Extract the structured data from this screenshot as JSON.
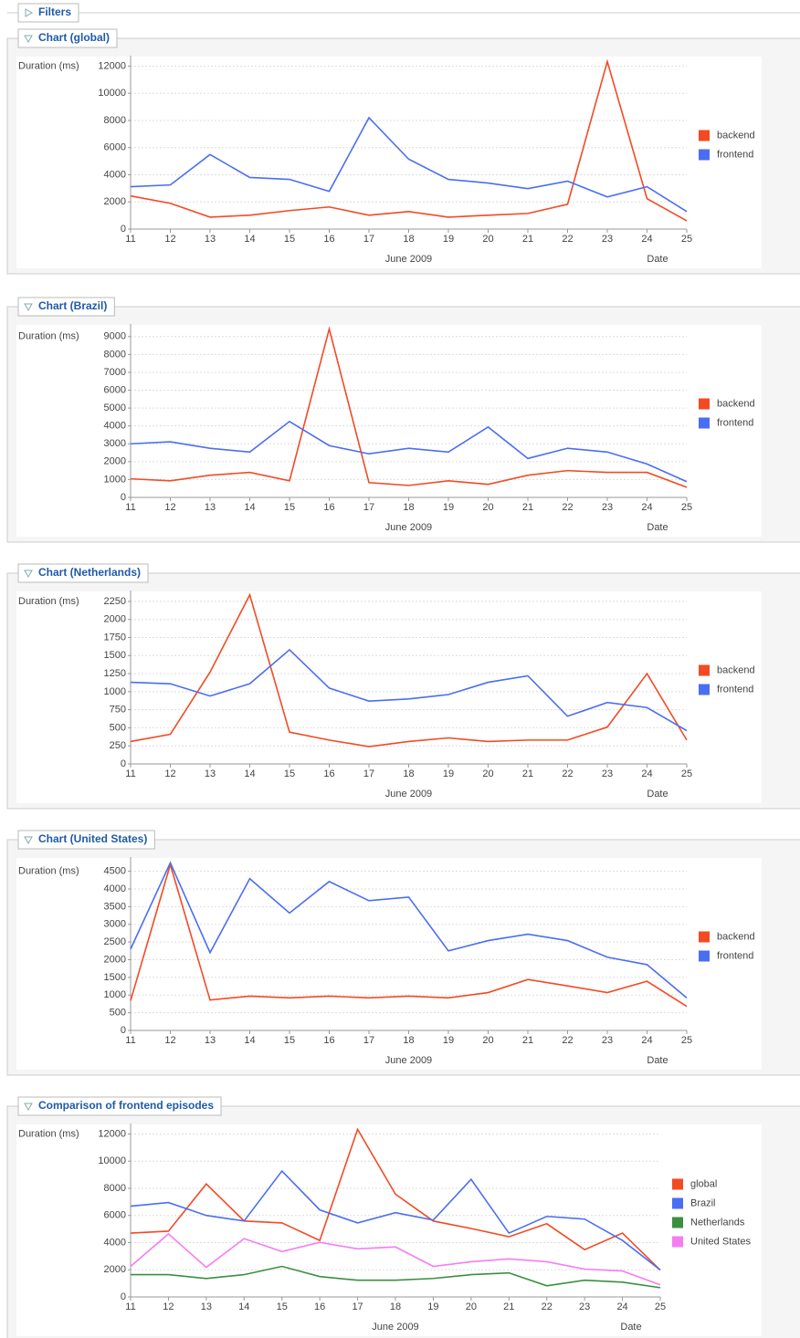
{
  "filters": "Filters",
  "chart_data": [
    {
      "type": "line",
      "title": "Chart (global)",
      "y_label": "Duration (ms)",
      "x_label": "Date",
      "x_sublabel": "June 2009",
      "categories": [
        "11",
        "12",
        "13",
        "14",
        "15",
        "16",
        "17",
        "18",
        "19",
        "20",
        "21",
        "22",
        "23",
        "24",
        "25"
      ],
      "ylim": [
        0,
        12500
      ],
      "yticks": [
        0,
        2000,
        4000,
        6000,
        8000,
        10000,
        12000
      ],
      "grid": true,
      "legend": "right",
      "series": [
        {
          "name": "backend",
          "color": "#f34a23",
          "values": [
            2440,
            1900,
            880,
            1020,
            1360,
            1630,
            1020,
            1290,
            880,
            1020,
            1150,
            1830,
            12340,
            2240,
            610
          ]
        },
        {
          "name": "frontend",
          "color": "#4a6ef2",
          "values": [
            3120,
            3250,
            5490,
            3800,
            3660,
            2780,
            8200,
            5150,
            3660,
            3390,
            2980,
            3530,
            2370,
            3120,
            1290
          ]
        }
      ]
    },
    {
      "type": "line",
      "title": "Chart (Brazil)",
      "y_label": "Duration (ms)",
      "x_label": "Date",
      "x_sublabel": "June 2009",
      "categories": [
        "11",
        "12",
        "13",
        "14",
        "15",
        "16",
        "17",
        "18",
        "19",
        "20",
        "21",
        "22",
        "23",
        "24",
        "25"
      ],
      "ylim": [
        0,
        9500
      ],
      "yticks": [
        0,
        1000,
        2000,
        3000,
        4000,
        5000,
        6000,
        7000,
        8000,
        9000
      ],
      "grid": true,
      "legend": "right",
      "series": [
        {
          "name": "backend",
          "color": "#f34a23",
          "values": [
            1040,
            930,
            1240,
            1400,
            930,
            9430,
            830,
            670,
            930,
            730,
            1240,
            1500,
            1400,
            1400,
            570
          ]
        },
        {
          "name": "frontend",
          "color": "#4a6ef2",
          "values": [
            3000,
            3110,
            2750,
            2540,
            4250,
            2900,
            2440,
            2750,
            2540,
            3940,
            2180,
            2750,
            2540,
            1870,
            880
          ]
        }
      ]
    },
    {
      "type": "line",
      "title": "Chart (Netherlands)",
      "y_label": "Duration (ms)",
      "x_label": "Date",
      "x_sublabel": "June 2009",
      "categories": [
        "11",
        "12",
        "13",
        "14",
        "15",
        "16",
        "17",
        "18",
        "19",
        "20",
        "21",
        "22",
        "23",
        "24",
        "25"
      ],
      "ylim": [
        0,
        2350
      ],
      "yticks": [
        0,
        250,
        500,
        750,
        1000,
        1250,
        1500,
        1750,
        2000,
        2250
      ],
      "grid": true,
      "legend": "right",
      "series": [
        {
          "name": "backend",
          "color": "#f34a23",
          "values": [
            310,
            410,
            1270,
            2340,
            440,
            330,
            240,
            310,
            360,
            310,
            330,
            330,
            510,
            1250,
            330
          ]
        },
        {
          "name": "frontend",
          "color": "#4a6ef2",
          "values": [
            1130,
            1110,
            940,
            1110,
            1580,
            1050,
            870,
            900,
            960,
            1130,
            1220,
            660,
            850,
            780,
            460
          ]
        }
      ]
    },
    {
      "type": "line",
      "title": "Chart (United States)",
      "y_label": "Duration (ms)",
      "x_label": "Date",
      "x_sublabel": "June 2009",
      "categories": [
        "11",
        "12",
        "13",
        "14",
        "15",
        "16",
        "17",
        "18",
        "19",
        "20",
        "21",
        "22",
        "23",
        "24",
        "25"
      ],
      "ylim": [
        0,
        4800
      ],
      "yticks": [
        0,
        500,
        1000,
        1500,
        2000,
        2500,
        3000,
        3500,
        4000,
        4500
      ],
      "grid": true,
      "legend": "right",
      "series": [
        {
          "name": "backend",
          "color": "#f34a23",
          "values": [
            840,
            4690,
            860,
            970,
            920,
            970,
            920,
            970,
            920,
            1070,
            1440,
            1260,
            1070,
            1390,
            680
          ]
        },
        {
          "name": "frontend",
          "color": "#4a6ef2",
          "values": [
            2300,
            4740,
            2200,
            4290,
            3320,
            4210,
            3670,
            3770,
            2250,
            2540,
            2720,
            2540,
            2070,
            1860,
            920
          ]
        }
      ]
    },
    {
      "type": "line",
      "title": "Comparison of frontend episodes",
      "y_label": "Duration (ms)",
      "x_label": "Date",
      "x_sublabel": "June 2009",
      "categories": [
        "11",
        "12",
        "13",
        "14",
        "15",
        "16",
        "17",
        "18",
        "19",
        "20",
        "21",
        "22",
        "23",
        "24",
        "25"
      ],
      "ylim": [
        0,
        12500
      ],
      "yticks": [
        0,
        2000,
        4000,
        6000,
        8000,
        10000,
        12000
      ],
      "grid": true,
      "legend": "right",
      "series": [
        {
          "name": "global",
          "color": "#f34a23",
          "values": [
            4700,
            4840,
            8320,
            5590,
            5450,
            4160,
            12340,
            7570,
            5590,
            5040,
            4430,
            5390,
            3480,
            4700,
            1980
          ]
        },
        {
          "name": "Brazil",
          "color": "#4a6ef2",
          "values": [
            6680,
            6950,
            6000,
            5590,
            9270,
            6410,
            5450,
            6200,
            5660,
            8660,
            4700,
            5930,
            5730,
            4160,
            1980
          ]
        },
        {
          "name": "Netherlands",
          "color": "#3a8f3e",
          "values": [
            1640,
            1640,
            1360,
            1640,
            2250,
            1500,
            1230,
            1230,
            1360,
            1640,
            1770,
            820,
            1230,
            1090,
            680
          ]
        },
        {
          "name": "United States",
          "color": "#f57df2",
          "values": [
            2250,
            4640,
            2180,
            4290,
            3340,
            4020,
            3540,
            3680,
            2250,
            2590,
            2800,
            2590,
            2050,
            1910,
            890
          ]
        }
      ]
    }
  ]
}
